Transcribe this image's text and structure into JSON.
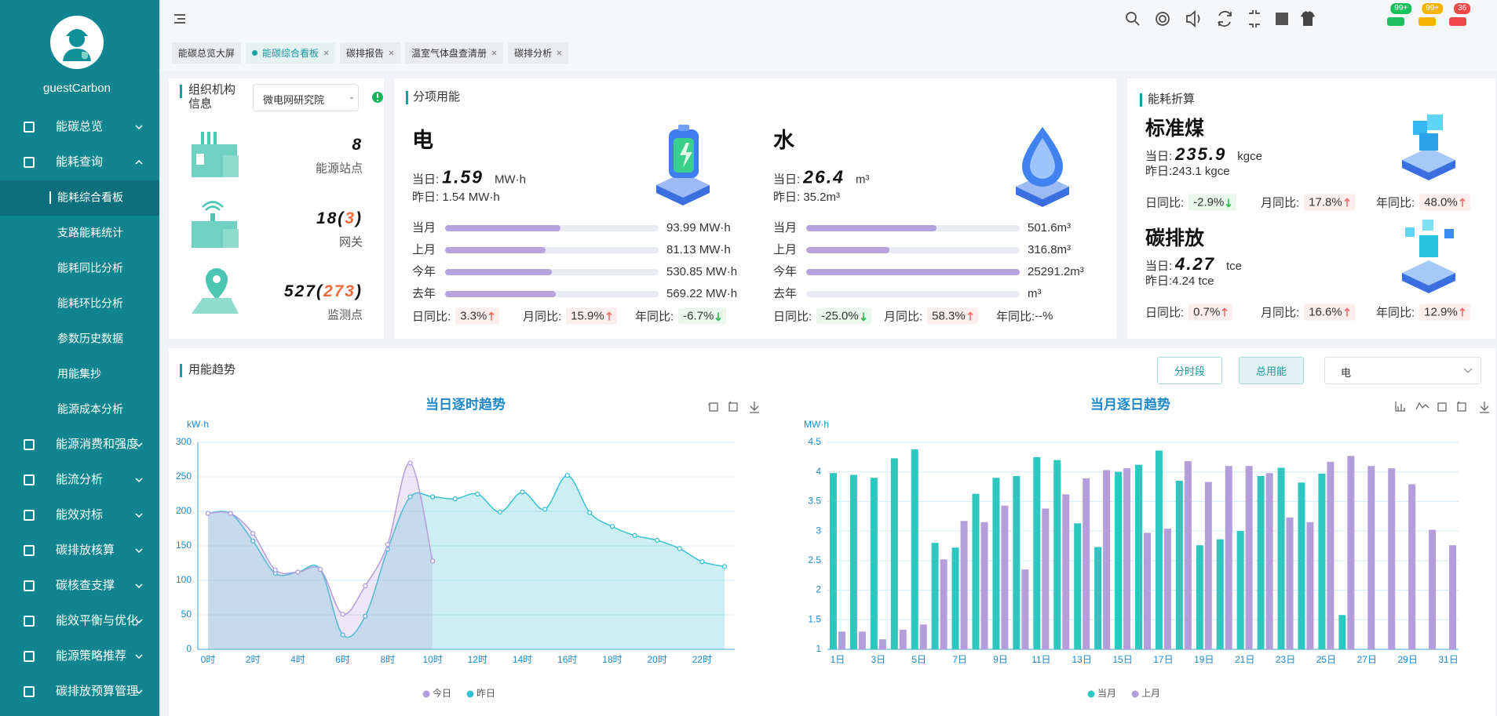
{
  "sidebar": {
    "user": "guestCarbon",
    "menu": [
      "能碳总览",
      "能耗查询",
      "能源消费和强度",
      "能流分析",
      "能效对标",
      "碳排放核算",
      "碳核查支撑",
      "能效平衡与优化",
      "能源策略推荐",
      "碳排放预算管理"
    ],
    "submenu": [
      "能耗综合看板",
      "支路能耗统计",
      "能耗同比分析",
      "能耗环比分析",
      "参数历史数据",
      "用能集抄",
      "能源成本分析"
    ]
  },
  "topbar": {
    "badges": [
      "99+",
      "99+",
      36
    ],
    "tabs": [
      "能碳总览大屏",
      "能碳综合看板",
      "碳排报告",
      "温室气体盘查清册",
      "碳排分析"
    ]
  },
  "org": {
    "title": "组织机构信息",
    "select": "微电网研究院",
    "stats": [
      {
        "parts": [
          "8"
        ],
        "label": "能源站点"
      },
      {
        "parts": [
          "18(",
          "3",
          ")"
        ],
        "label": "网关"
      },
      {
        "parts": [
          "527(",
          "273",
          ")"
        ],
        "label": "监测点"
      }
    ]
  },
  "energy": {
    "title": "分项用能",
    "items": [
      {
        "name": "电",
        "today_label": "当日:",
        "today": 1.59,
        "today_unit": "MW·h",
        "yesterday": "昨日: 1.54 MW·h",
        "rows": [
          {
            "label": "当月",
            "value": "93.99 MW·h",
            "bar": 54
          },
          {
            "label": "上月",
            "value": "81.13 MW·h",
            "bar": 47
          },
          {
            "label": "今年",
            "value": "530.85 MW·h",
            "bar": 50
          },
          {
            "label": "去年",
            "value": "569.22 MW·h",
            "bar": 52
          }
        ],
        "compare": [
          {
            "label": "日同比:",
            "value": "3.3%",
            "dir": "up"
          },
          {
            "label": "月同比:",
            "value": "15.9%",
            "dir": "up"
          },
          {
            "label": "年同比:",
            "value": "-6.7%",
            "dir": "down"
          }
        ]
      },
      {
        "name": "水",
        "today_label": "当日:",
        "today": 26.4,
        "today_unit": "m³",
        "yesterday": "昨日: 35.2m³",
        "rows": [
          {
            "label": "当月",
            "value": "501.6m³",
            "bar": 61
          },
          {
            "label": "上月",
            "value": "316.8m³",
            "bar": 39
          },
          {
            "label": "今年",
            "value": "25291.2m³",
            "bar": 100
          },
          {
            "label": "去年",
            "value": "m³",
            "bar": 0
          }
        ],
        "compare": [
          {
            "label": "日同比:",
            "value": "-25.0%",
            "dir": "down"
          },
          {
            "label": "月同比:",
            "value": "58.3%",
            "dir": "up"
          },
          {
            "label": "年同比:",
            "value": "--%",
            "dir": null
          }
        ]
      }
    ]
  },
  "conversion": {
    "title": "能耗折算",
    "items": [
      {
        "name": "标准煤",
        "today_label": "当日:",
        "today": 235.9,
        "today_unit": "kgce",
        "yesterday": "昨日:243.1 kgce",
        "compare": [
          {
            "label": "日同比:",
            "value": "-2.9%",
            "dir": "down"
          },
          {
            "label": "月同比:",
            "value": "17.8%",
            "dir": "up"
          },
          {
            "label": "年同比:",
            "value": "48.0%",
            "dir": "up"
          }
        ]
      },
      {
        "name": "碳排放",
        "today_label": "当日:",
        "today": 4.27,
        "today_unit": "tce",
        "yesterday": "昨日:4.24 tce",
        "compare": [
          {
            "label": "日同比:",
            "value": "0.7%",
            "dir": "up"
          },
          {
            "label": "月同比:",
            "value": "16.6%",
            "dir": "up"
          },
          {
            "label": "年同比:",
            "value": "12.9%",
            "dir": "up"
          }
        ]
      }
    ]
  },
  "trend": {
    "title": "用能趋势",
    "buttons": [
      "分时段",
      "总用能"
    ],
    "select": "电"
  },
  "chart_data": [
    {
      "type": "line",
      "title": "当日逐时趋势",
      "y_label": "kW·h",
      "smooth": true,
      "area": true,
      "grid": true,
      "categories": [
        "0时",
        null,
        "2时",
        null,
        "4时",
        null,
        "6时",
        null,
        "8时",
        null,
        "10时",
        null,
        "12时",
        null,
        "14时",
        null,
        "16时",
        null,
        "18时",
        null,
        "20时",
        null,
        "22时",
        null
      ],
      "series": [
        {
          "name": "今日",
          "color": "#b39ddb",
          "values": [
            197,
            197,
            168,
            115,
            112,
            116,
            51,
            92,
            152,
            270,
            128,
            null,
            null,
            null,
            null,
            null,
            null,
            null,
            null,
            null,
            null,
            null,
            null,
            null
          ]
        },
        {
          "name": "昨日",
          "color": "#36c1cf",
          "values": [
            197,
            197,
            157,
            110,
            112,
            116,
            21,
            48,
            145,
            221,
            221,
            218,
            225,
            199,
            228,
            203,
            252,
            198,
            178,
            165,
            158,
            146,
            127,
            120
          ]
        }
      ],
      "ylim": [
        0,
        300
      ],
      "yticks": [
        0,
        50,
        100,
        150,
        200,
        250,
        300
      ]
    },
    {
      "type": "bar",
      "title": "当月逐日趋势",
      "y_label": "MW·h",
      "grid": true,
      "categories": [
        "1日",
        null,
        "3日",
        null,
        "5日",
        null,
        "7日",
        null,
        "9日",
        null,
        "11日",
        null,
        "13日",
        null,
        "15日",
        null,
        "17日",
        null,
        "19日",
        null,
        "21日",
        null,
        "23日",
        null,
        "25日",
        null,
        "27日",
        null,
        "29日",
        null,
        "31日"
      ],
      "series": [
        {
          "name": "当月",
          "color": "#2ec7c0",
          "values": [
            3.98,
            3.95,
            3.9,
            4.23,
            4.38,
            2.8,
            2.72,
            3.63,
            3.9,
            3.93,
            4.25,
            4.2,
            3.13,
            2.73,
            4.0,
            4.12,
            4.36,
            3.85,
            2.76,
            2.86,
            3.0,
            3.93,
            4.07,
            3.82,
            3.97,
            1.58,
            null,
            null,
            null,
            null,
            null
          ]
        },
        {
          "name": "上月",
          "color": "#b39ddb",
          "values": [
            1.3,
            1.3,
            1.17,
            1.33,
            1.42,
            2.52,
            3.17,
            3.15,
            3.43,
            2.35,
            3.38,
            3.62,
            3.89,
            4.03,
            4.06,
            2.97,
            3.04,
            4.18,
            3.83,
            4.1,
            4.1,
            3.98,
            3.23,
            3.15,
            4.17,
            4.27,
            4.1,
            4.06,
            3.79,
            3.02,
            2.76
          ]
        }
      ],
      "ylim": [
        1,
        4.5
      ],
      "yticks": [
        1,
        1.5,
        2,
        2.5,
        3,
        3.5,
        4,
        4.5
      ]
    }
  ]
}
